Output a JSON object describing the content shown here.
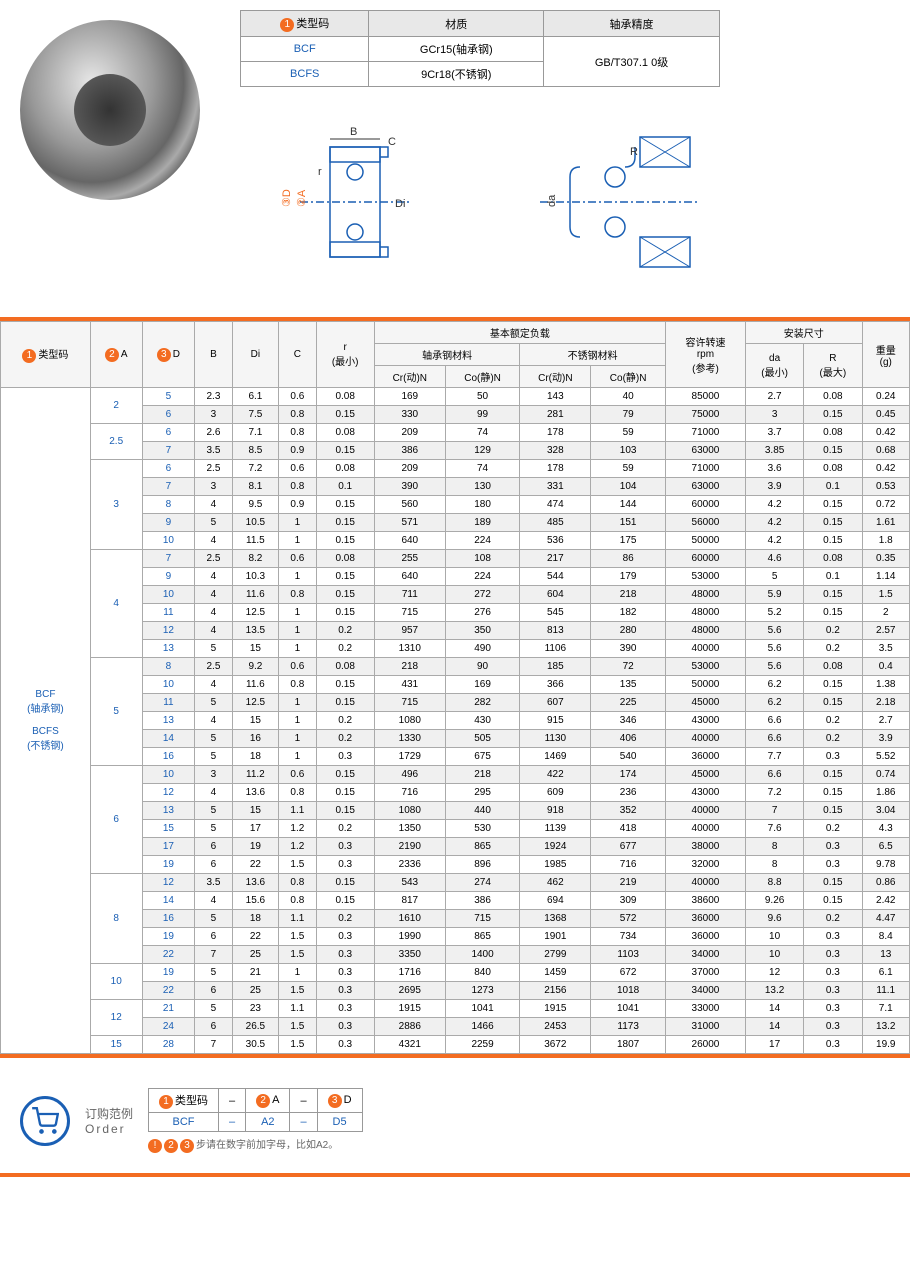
{
  "material_table": {
    "headers": [
      "类型码",
      "材质",
      "轴承精度"
    ],
    "rows": [
      {
        "code": "BCF",
        "material": "GCr15(轴承钢)",
        "precision": "GB/T307.1 0级"
      },
      {
        "code": "BCFS",
        "material": "9Cr18(不锈钢)",
        "precision": ""
      }
    ]
  },
  "diagram_labels": {
    "B": "B",
    "C": "C",
    "r": "r",
    "D": "D",
    "A": "A",
    "Di": "Di",
    "R": "R",
    "da": "da"
  },
  "main_table": {
    "headers": {
      "type": "类型码",
      "A": "A",
      "D": "D",
      "B": "B",
      "Di": "Di",
      "C": "C",
      "r": "r\n(最小)",
      "load": "基本额定负载",
      "steel": "轴承钢材料",
      "stainless": "不锈钢材料",
      "cr_steel": "Cr(动)N",
      "co_steel": "Co(静)N",
      "cr_ss": "Cr(动)N",
      "co_ss": "Co(静)N",
      "rpm": "容许转速\nrpm\n(参考)",
      "install": "安装尺寸",
      "da": "da\n(最小)",
      "R": "R\n(最大)",
      "weight": "重量\n(g)"
    },
    "type_label": "BCF\n(轴承钢)\n\nBCFS\n(不锈钢)",
    "groups": [
      {
        "A": "2",
        "rows": [
          {
            "D": "5",
            "B": "2.3",
            "Di": "6.1",
            "C": "0.6",
            "r": "0.08",
            "cr1": "169",
            "co1": "50",
            "cr2": "143",
            "co2": "40",
            "rpm": "85000",
            "da": "2.7",
            "R": "0.08",
            "w": "0.24"
          },
          {
            "D": "6",
            "B": "3",
            "Di": "7.5",
            "C": "0.8",
            "r": "0.15",
            "cr1": "330",
            "co1": "99",
            "cr2": "281",
            "co2": "79",
            "rpm": "75000",
            "da": "3",
            "R": "0.15",
            "w": "0.45"
          }
        ]
      },
      {
        "A": "2.5",
        "rows": [
          {
            "D": "6",
            "B": "2.6",
            "Di": "7.1",
            "C": "0.8",
            "r": "0.08",
            "cr1": "209",
            "co1": "74",
            "cr2": "178",
            "co2": "59",
            "rpm": "71000",
            "da": "3.7",
            "R": "0.08",
            "w": "0.42"
          },
          {
            "D": "7",
            "B": "3.5",
            "Di": "8.5",
            "C": "0.9",
            "r": "0.15",
            "cr1": "386",
            "co1": "129",
            "cr2": "328",
            "co2": "103",
            "rpm": "63000",
            "da": "3.85",
            "R": "0.15",
            "w": "0.68"
          }
        ]
      },
      {
        "A": "3",
        "rows": [
          {
            "D": "6",
            "B": "2.5",
            "Di": "7.2",
            "C": "0.6",
            "r": "0.08",
            "cr1": "209",
            "co1": "74",
            "cr2": "178",
            "co2": "59",
            "rpm": "71000",
            "da": "3.6",
            "R": "0.08",
            "w": "0.42"
          },
          {
            "D": "7",
            "B": "3",
            "Di": "8.1",
            "C": "0.8",
            "r": "0.1",
            "cr1": "390",
            "co1": "130",
            "cr2": "331",
            "co2": "104",
            "rpm": "63000",
            "da": "3.9",
            "R": "0.1",
            "w": "0.53"
          },
          {
            "D": "8",
            "B": "4",
            "Di": "9.5",
            "C": "0.9",
            "r": "0.15",
            "cr1": "560",
            "co1": "180",
            "cr2": "474",
            "co2": "144",
            "rpm": "60000",
            "da": "4.2",
            "R": "0.15",
            "w": "0.72"
          },
          {
            "D": "9",
            "B": "5",
            "Di": "10.5",
            "C": "1",
            "r": "0.15",
            "cr1": "571",
            "co1": "189",
            "cr2": "485",
            "co2": "151",
            "rpm": "56000",
            "da": "4.2",
            "R": "0.15",
            "w": "1.61"
          },
          {
            "D": "10",
            "B": "4",
            "Di": "11.5",
            "C": "1",
            "r": "0.15",
            "cr1": "640",
            "co1": "224",
            "cr2": "536",
            "co2": "175",
            "rpm": "50000",
            "da": "4.2",
            "R": "0.15",
            "w": "1.8"
          }
        ]
      },
      {
        "A": "4",
        "rows": [
          {
            "D": "7",
            "B": "2.5",
            "Di": "8.2",
            "C": "0.6",
            "r": "0.08",
            "cr1": "255",
            "co1": "108",
            "cr2": "217",
            "co2": "86",
            "rpm": "60000",
            "da": "4.6",
            "R": "0.08",
            "w": "0.35"
          },
          {
            "D": "9",
            "B": "4",
            "Di": "10.3",
            "C": "1",
            "r": "0.15",
            "cr1": "640",
            "co1": "224",
            "cr2": "544",
            "co2": "179",
            "rpm": "53000",
            "da": "5",
            "R": "0.1",
            "w": "1.14"
          },
          {
            "D": "10",
            "B": "4",
            "Di": "11.6",
            "C": "0.8",
            "r": "0.15",
            "cr1": "711",
            "co1": "272",
            "cr2": "604",
            "co2": "218",
            "rpm": "48000",
            "da": "5.9",
            "R": "0.15",
            "w": "1.5"
          },
          {
            "D": "11",
            "B": "4",
            "Di": "12.5",
            "C": "1",
            "r": "0.15",
            "cr1": "715",
            "co1": "276",
            "cr2": "545",
            "co2": "182",
            "rpm": "48000",
            "da": "5.2",
            "R": "0.15",
            "w": "2"
          },
          {
            "D": "12",
            "B": "4",
            "Di": "13.5",
            "C": "1",
            "r": "0.2",
            "cr1": "957",
            "co1": "350",
            "cr2": "813",
            "co2": "280",
            "rpm": "48000",
            "da": "5.6",
            "R": "0.2",
            "w": "2.57"
          },
          {
            "D": "13",
            "B": "5",
            "Di": "15",
            "C": "1",
            "r": "0.2",
            "cr1": "1310",
            "co1": "490",
            "cr2": "1106",
            "co2": "390",
            "rpm": "40000",
            "da": "5.6",
            "R": "0.2",
            "w": "3.5"
          }
        ]
      },
      {
        "A": "5",
        "rows": [
          {
            "D": "8",
            "B": "2.5",
            "Di": "9.2",
            "C": "0.6",
            "r": "0.08",
            "cr1": "218",
            "co1": "90",
            "cr2": "185",
            "co2": "72",
            "rpm": "53000",
            "da": "5.6",
            "R": "0.08",
            "w": "0.4"
          },
          {
            "D": "10",
            "B": "4",
            "Di": "11.6",
            "C": "0.8",
            "r": "0.15",
            "cr1": "431",
            "co1": "169",
            "cr2": "366",
            "co2": "135",
            "rpm": "50000",
            "da": "6.2",
            "R": "0.15",
            "w": "1.38"
          },
          {
            "D": "11",
            "B": "5",
            "Di": "12.5",
            "C": "1",
            "r": "0.15",
            "cr1": "715",
            "co1": "282",
            "cr2": "607",
            "co2": "225",
            "rpm": "45000",
            "da": "6.2",
            "R": "0.15",
            "w": "2.18"
          },
          {
            "D": "13",
            "B": "4",
            "Di": "15",
            "C": "1",
            "r": "0.2",
            "cr1": "1080",
            "co1": "430",
            "cr2": "915",
            "co2": "346",
            "rpm": "43000",
            "da": "6.6",
            "R": "0.2",
            "w": "2.7"
          },
          {
            "D": "14",
            "B": "5",
            "Di": "16",
            "C": "1",
            "r": "0.2",
            "cr1": "1330",
            "co1": "505",
            "cr2": "1130",
            "co2": "406",
            "rpm": "40000",
            "da": "6.6",
            "R": "0.2",
            "w": "3.9"
          },
          {
            "D": "16",
            "B": "5",
            "Di": "18",
            "C": "1",
            "r": "0.3",
            "cr1": "1729",
            "co1": "675",
            "cr2": "1469",
            "co2": "540",
            "rpm": "36000",
            "da": "7.7",
            "R": "0.3",
            "w": "5.52"
          }
        ]
      },
      {
        "A": "6",
        "rows": [
          {
            "D": "10",
            "B": "3",
            "Di": "11.2",
            "C": "0.6",
            "r": "0.15",
            "cr1": "496",
            "co1": "218",
            "cr2": "422",
            "co2": "174",
            "rpm": "45000",
            "da": "6.6",
            "R": "0.15",
            "w": "0.74"
          },
          {
            "D": "12",
            "B": "4",
            "Di": "13.6",
            "C": "0.8",
            "r": "0.15",
            "cr1": "716",
            "co1": "295",
            "cr2": "609",
            "co2": "236",
            "rpm": "43000",
            "da": "7.2",
            "R": "0.15",
            "w": "1.86"
          },
          {
            "D": "13",
            "B": "5",
            "Di": "15",
            "C": "1.1",
            "r": "0.15",
            "cr1": "1080",
            "co1": "440",
            "cr2": "918",
            "co2": "352",
            "rpm": "40000",
            "da": "7",
            "R": "0.15",
            "w": "3.04"
          },
          {
            "D": "15",
            "B": "5",
            "Di": "17",
            "C": "1.2",
            "r": "0.2",
            "cr1": "1350",
            "co1": "530",
            "cr2": "1139",
            "co2": "418",
            "rpm": "40000",
            "da": "7.6",
            "R": "0.2",
            "w": "4.3"
          },
          {
            "D": "17",
            "B": "6",
            "Di": "19",
            "C": "1.2",
            "r": "0.3",
            "cr1": "2190",
            "co1": "865",
            "cr2": "1924",
            "co2": "677",
            "rpm": "38000",
            "da": "8",
            "R": "0.3",
            "w": "6.5"
          },
          {
            "D": "19",
            "B": "6",
            "Di": "22",
            "C": "1.5",
            "r": "0.3",
            "cr1": "2336",
            "co1": "896",
            "cr2": "1985",
            "co2": "716",
            "rpm": "32000",
            "da": "8",
            "R": "0.3",
            "w": "9.78"
          }
        ]
      },
      {
        "A": "8",
        "rows": [
          {
            "D": "12",
            "B": "3.5",
            "Di": "13.6",
            "C": "0.8",
            "r": "0.15",
            "cr1": "543",
            "co1": "274",
            "cr2": "462",
            "co2": "219",
            "rpm": "40000",
            "da": "8.8",
            "R": "0.15",
            "w": "0.86"
          },
          {
            "D": "14",
            "B": "4",
            "Di": "15.6",
            "C": "0.8",
            "r": "0.15",
            "cr1": "817",
            "co1": "386",
            "cr2": "694",
            "co2": "309",
            "rpm": "38600",
            "da": "9.26",
            "R": "0.15",
            "w": "2.42"
          },
          {
            "D": "16",
            "B": "5",
            "Di": "18",
            "C": "1.1",
            "r": "0.2",
            "cr1": "1610",
            "co1": "715",
            "cr2": "1368",
            "co2": "572",
            "rpm": "36000",
            "da": "9.6",
            "R": "0.2",
            "w": "4.47"
          },
          {
            "D": "19",
            "B": "6",
            "Di": "22",
            "C": "1.5",
            "r": "0.3",
            "cr1": "1990",
            "co1": "865",
            "cr2": "1901",
            "co2": "734",
            "rpm": "36000",
            "da": "10",
            "R": "0.3",
            "w": "8.4"
          },
          {
            "D": "22",
            "B": "7",
            "Di": "25",
            "C": "1.5",
            "r": "0.3",
            "cr1": "3350",
            "co1": "1400",
            "cr2": "2799",
            "co2": "1103",
            "rpm": "34000",
            "da": "10",
            "R": "0.3",
            "w": "13"
          }
        ]
      },
      {
        "A": "10",
        "rows": [
          {
            "D": "19",
            "B": "5",
            "Di": "21",
            "C": "1",
            "r": "0.3",
            "cr1": "1716",
            "co1": "840",
            "cr2": "1459",
            "co2": "672",
            "rpm": "37000",
            "da": "12",
            "R": "0.3",
            "w": "6.1"
          },
          {
            "D": "22",
            "B": "6",
            "Di": "25",
            "C": "1.5",
            "r": "0.3",
            "cr1": "2695",
            "co1": "1273",
            "cr2": "2156",
            "co2": "1018",
            "rpm": "34000",
            "da": "13.2",
            "R": "0.3",
            "w": "11.1"
          }
        ]
      },
      {
        "A": "12",
        "rows": [
          {
            "D": "21",
            "B": "5",
            "Di": "23",
            "C": "1.1",
            "r": "0.3",
            "cr1": "1915",
            "co1": "1041",
            "cr2": "1915",
            "co2": "1041",
            "rpm": "33000",
            "da": "14",
            "R": "0.3",
            "w": "7.1"
          },
          {
            "D": "24",
            "B": "6",
            "Di": "26.5",
            "C": "1.5",
            "r": "0.3",
            "cr1": "2886",
            "co1": "1466",
            "cr2": "2453",
            "co2": "1173",
            "rpm": "31000",
            "da": "14",
            "R": "0.3",
            "w": "13.2"
          }
        ]
      },
      {
        "A": "15",
        "rows": [
          {
            "D": "28",
            "B": "7",
            "Di": "30.5",
            "C": "1.5",
            "r": "0.3",
            "cr1": "4321",
            "co1": "2259",
            "cr2": "3672",
            "co2": "1807",
            "rpm": "26000",
            "da": "17",
            "R": "0.3",
            "w": "19.9"
          }
        ]
      }
    ]
  },
  "order": {
    "label": "订购范例",
    "label_en": "Order",
    "headers": [
      "类型码",
      "–",
      "A",
      "–",
      "D"
    ],
    "example": [
      "BCF",
      "–",
      "A2",
      "–",
      "D5"
    ],
    "note": "步请在数字前加字母，比如A2。"
  },
  "colors": {
    "accent": "#f36c21",
    "link": "#1a5fb4",
    "border": "#999",
    "bg_alt": "#f0f0f0"
  }
}
